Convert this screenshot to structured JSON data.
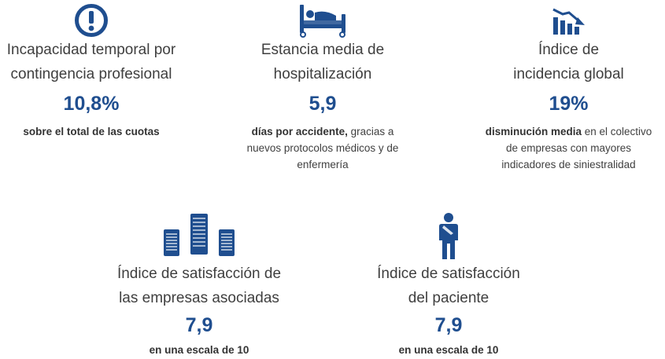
{
  "colors": {
    "accent": "#1f4e8f",
    "text": "#404040"
  },
  "kpis": [
    {
      "icon": "alert-icon",
      "label_line1": "Incapacidad temporal por",
      "label_line2": "contingencia profesional",
      "value": "10,8%",
      "desc_bold": "sobre el total de las cuotas",
      "desc_rest": "",
      "desc_line2": "",
      "desc_line3": ""
    },
    {
      "icon": "hospital-bed-icon",
      "label_line1": "Estancia media de",
      "label_line2": "hospitalización",
      "value": "5,9",
      "desc_bold": "días por accidente,",
      "desc_rest": " gracias a",
      "desc_line2": "nuevos protocolos médicos y de",
      "desc_line3": "enfermería"
    },
    {
      "icon": "declining-chart-icon",
      "label_line1": "Índice de",
      "label_line2": "incidencia global",
      "value": "19%",
      "desc_bold": "disminución media",
      "desc_rest": " en el colectivo",
      "desc_line2": "de empresas con mayores",
      "desc_line3": "indicadores de siniestralidad"
    },
    {
      "icon": "buildings-icon",
      "label_line1": "Índice de satisfacción de",
      "label_line2": "las empresas asociadas",
      "value": "7,9",
      "desc_bold": "en una escala de 10",
      "desc_rest": "",
      "desc_line2": "",
      "desc_line3": ""
    },
    {
      "icon": "patient-icon",
      "label_line1": "Índice de satisfacción",
      "label_line2": "del paciente",
      "value": "7,9",
      "desc_bold": "en una escala de 10",
      "desc_rest": "",
      "desc_line2": "",
      "desc_line3": ""
    }
  ]
}
